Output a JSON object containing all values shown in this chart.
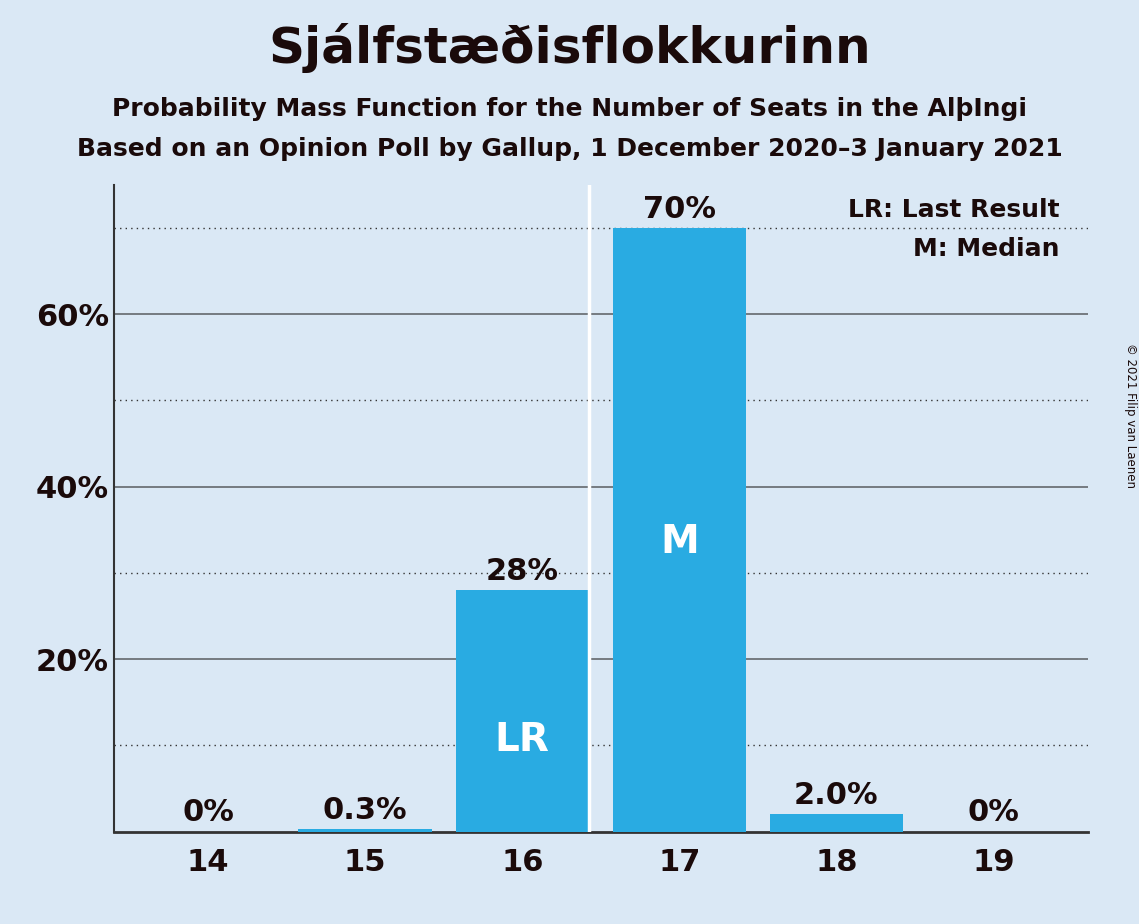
{
  "title": "Sjálfstæðisflokkurinn",
  "subtitle1": "Probability Mass Function for the Number of Seats in the AlþIngi",
  "subtitle2": "Based on an Opinion Poll by Gallup, 1 December 2020–3 January 2021",
  "copyright": "© 2021 Filip van Laenen",
  "seats": [
    14,
    15,
    16,
    17,
    18,
    19
  ],
  "probabilities": [
    0.0,
    0.3,
    28.0,
    70.0,
    2.0,
    0.0
  ],
  "bar_color": "#29ABE2",
  "background_color": "#DAE8F5",
  "lr_seat": 16,
  "median_seat": 17,
  "legend_lr": "LR: Last Result",
  "legend_m": "M: Median",
  "text_color": "#1a0a0a",
  "ylim": [
    0,
    75
  ],
  "solid_yticks": [
    0,
    20,
    40,
    60
  ],
  "dotted_yticks": [
    10,
    30,
    50,
    70
  ],
  "solid_ytick_labels": [
    "",
    "20%",
    "40%",
    "60%"
  ],
  "grid_color": "#333333",
  "title_fontsize": 36,
  "subtitle_fontsize": 18,
  "tick_fontsize": 22,
  "bar_label_fontsize": 22,
  "legend_fontsize": 18,
  "lr_m_label_fontsize": 28
}
